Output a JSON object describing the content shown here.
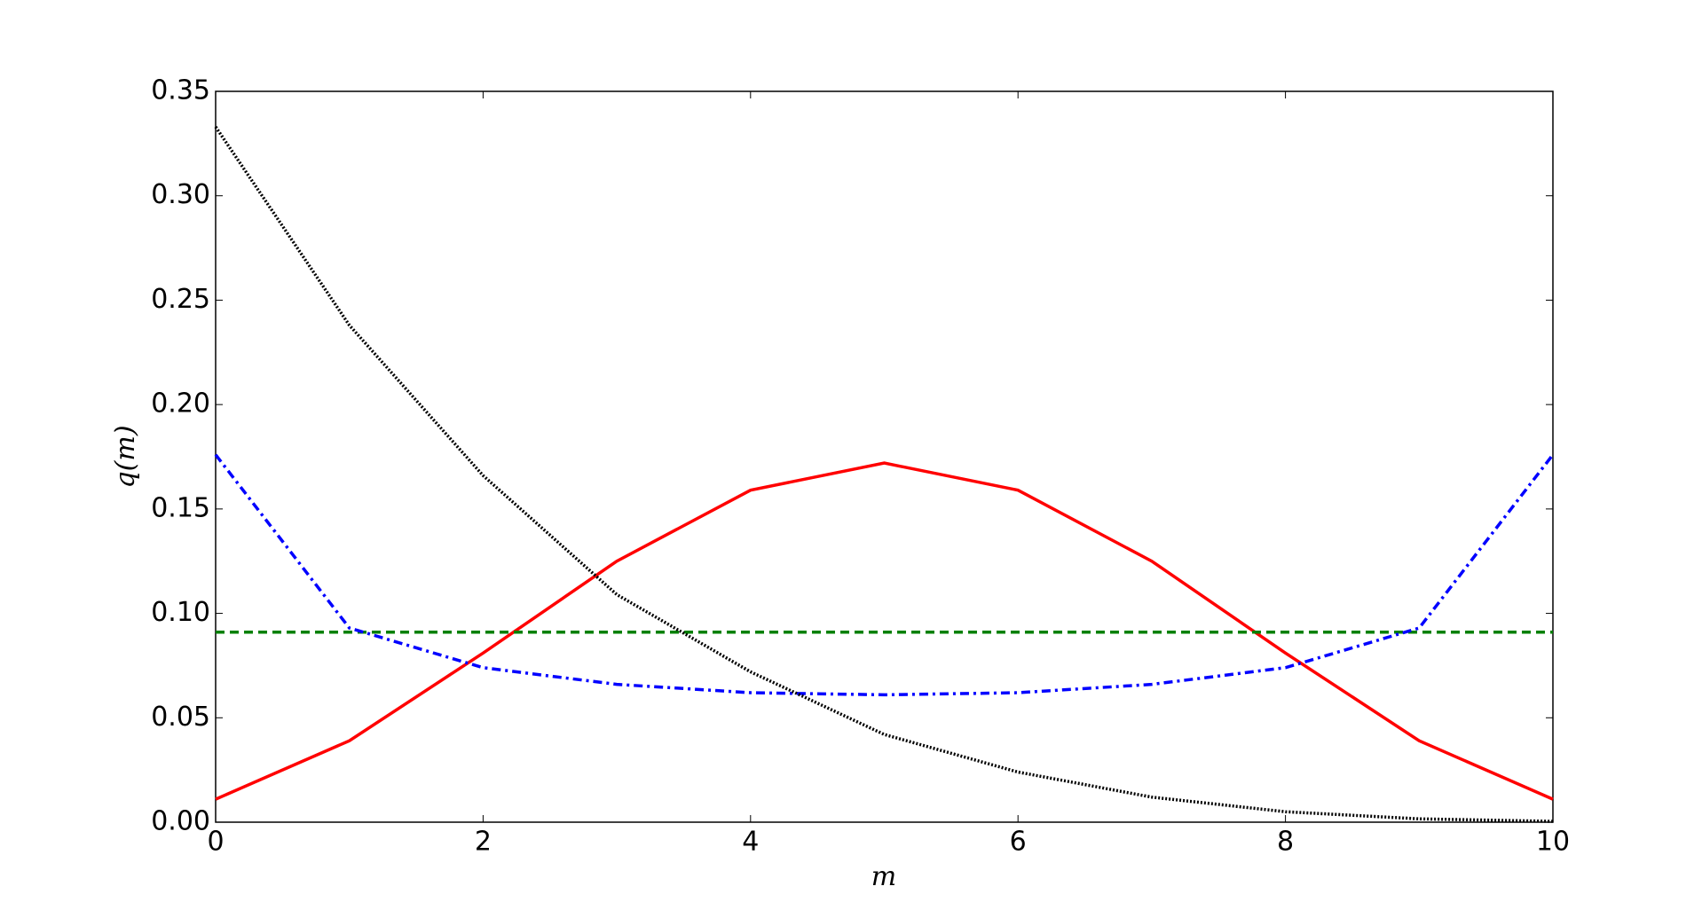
{
  "chart_data": {
    "type": "line",
    "xlabel": "m",
    "ylabel": "q(m)",
    "x": [
      0,
      1,
      2,
      3,
      4,
      5,
      6,
      7,
      8,
      9,
      10
    ],
    "series": [
      {
        "color": "#ff0000",
        "linestyle": "solid",
        "values": [
          0.011,
          0.039,
          0.081,
          0.125,
          0.159,
          0.172,
          0.159,
          0.125,
          0.081,
          0.039,
          0.011
        ]
      },
      {
        "color": "#008000",
        "linestyle": "dashed",
        "values": [
          0.091,
          0.091,
          0.091,
          0.091,
          0.091,
          0.091,
          0.091,
          0.091,
          0.091,
          0.091,
          0.091
        ]
      },
      {
        "color": "#0000ff",
        "linestyle": "dashdot",
        "values": [
          0.176,
          0.093,
          0.074,
          0.066,
          0.062,
          0.061,
          0.062,
          0.066,
          0.074,
          0.093,
          0.176
        ]
      },
      {
        "color": "#000000",
        "linestyle": "dotted",
        "values": [
          0.333,
          0.238,
          0.166,
          0.109,
          0.072,
          0.042,
          0.024,
          0.012,
          0.005,
          0.0016,
          0.0004
        ]
      }
    ],
    "xlim": [
      0,
      10
    ],
    "xticks": [
      0,
      2,
      4,
      6,
      8,
      10
    ],
    "ylim": [
      0,
      0.35
    ],
    "yticks": [
      {
        "value": 0,
        "label": "0.00"
      },
      0.05,
      {
        "value": 0.1,
        "label": "0.10"
      },
      0.15,
      {
        "value": 0.2,
        "label": "0.20"
      },
      0.25,
      {
        "value": 0.3,
        "label": "0.30"
      },
      0.35
    ],
    "grid": false
  }
}
